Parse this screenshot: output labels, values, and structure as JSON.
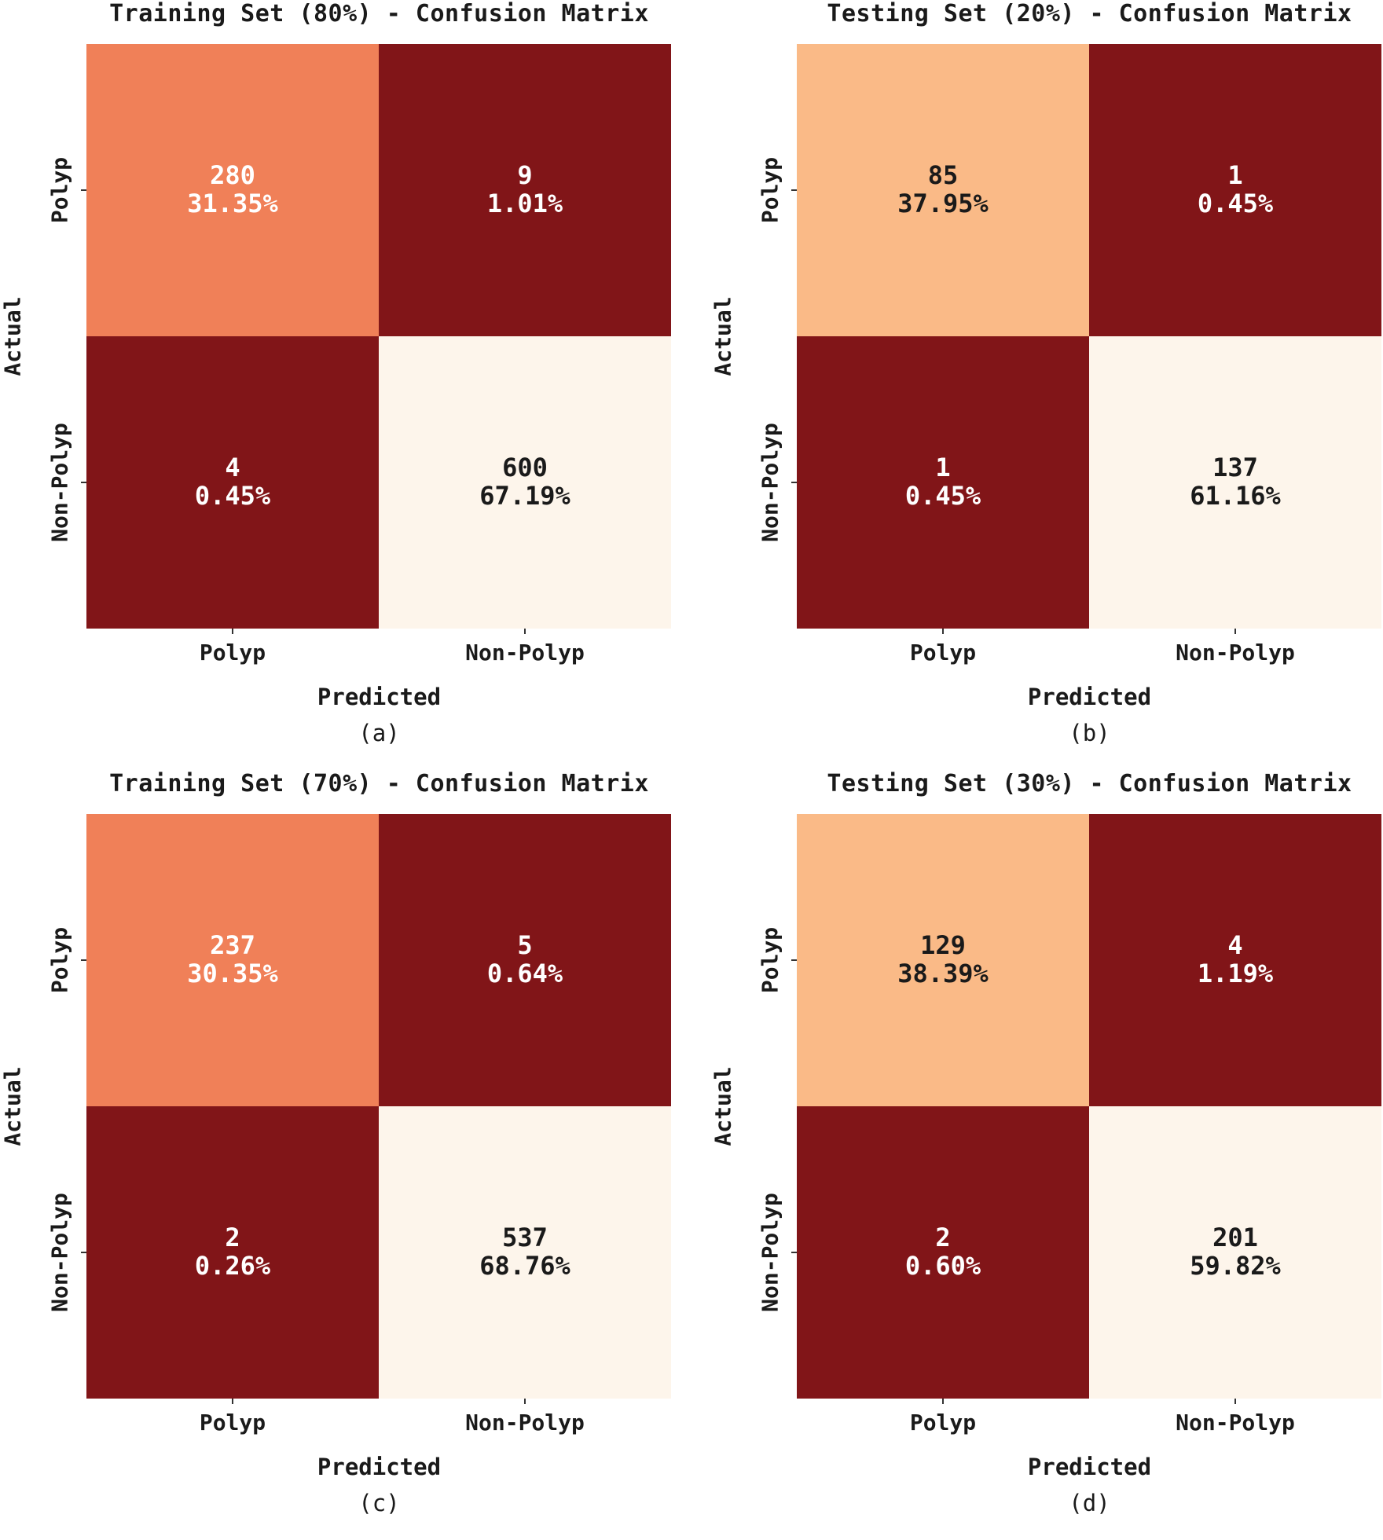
{
  "chart_data": [
    {
      "type": "heatmap",
      "caption": "(a)",
      "title": "Training Set (80%) - Confusion Matrix",
      "xlabel": "Predicted",
      "ylabel": "Actual",
      "x_categories": [
        "Polyp",
        "Non-Polyp"
      ],
      "y_categories": [
        "Polyp",
        "Non-Polyp"
      ],
      "values": [
        [
          280,
          9
        ],
        [
          4,
          600
        ]
      ],
      "percentages": [
        [
          "31.35%",
          "1.01%"
        ],
        [
          "0.45%",
          "67.19%"
        ]
      ],
      "cell_colors": [
        [
          "#F08058",
          "#811518"
        ],
        [
          "#811518",
          "#FDF5EB"
        ]
      ],
      "text_colors": [
        [
          "#ffffff",
          "#ffffff"
        ],
        [
          "#ffffff",
          "#1a1a1a"
        ]
      ]
    },
    {
      "type": "heatmap",
      "caption": "(b)",
      "title": "Testing Set (20%) - Confusion Matrix",
      "xlabel": "Predicted",
      "ylabel": "Actual",
      "x_categories": [
        "Polyp",
        "Non-Polyp"
      ],
      "y_categories": [
        "Polyp",
        "Non-Polyp"
      ],
      "values": [
        [
          85,
          1
        ],
        [
          1,
          137
        ]
      ],
      "percentages": [
        [
          "37.95%",
          "0.45%"
        ],
        [
          "0.45%",
          "61.16%"
        ]
      ],
      "cell_colors": [
        [
          "#FABA87",
          "#811518"
        ],
        [
          "#811518",
          "#FDF5EB"
        ]
      ],
      "text_colors": [
        [
          "#1a1a1a",
          "#ffffff"
        ],
        [
          "#ffffff",
          "#1a1a1a"
        ]
      ]
    },
    {
      "type": "heatmap",
      "caption": "(c)",
      "title": "Training Set (70%) - Confusion Matrix",
      "xlabel": "Predicted",
      "ylabel": "Actual",
      "x_categories": [
        "Polyp",
        "Non-Polyp"
      ],
      "y_categories": [
        "Polyp",
        "Non-Polyp"
      ],
      "values": [
        [
          237,
          5
        ],
        [
          2,
          537
        ]
      ],
      "percentages": [
        [
          "30.35%",
          "0.64%"
        ],
        [
          "0.26%",
          "68.76%"
        ]
      ],
      "cell_colors": [
        [
          "#F08058",
          "#811518"
        ],
        [
          "#811518",
          "#FDF5EB"
        ]
      ],
      "text_colors": [
        [
          "#ffffff",
          "#ffffff"
        ],
        [
          "#ffffff",
          "#1a1a1a"
        ]
      ]
    },
    {
      "type": "heatmap",
      "caption": "(d)",
      "title": "Testing Set (30%) - Confusion Matrix",
      "xlabel": "Predicted",
      "ylabel": "Actual",
      "x_categories": [
        "Polyp",
        "Non-Polyp"
      ],
      "y_categories": [
        "Polyp",
        "Non-Polyp"
      ],
      "values": [
        [
          129,
          4
        ],
        [
          2,
          201
        ]
      ],
      "percentages": [
        [
          "38.39%",
          "1.19%"
        ],
        [
          "0.60%",
          "59.82%"
        ]
      ],
      "cell_colors": [
        [
          "#FABA87",
          "#811518"
        ],
        [
          "#811518",
          "#FDF5EB"
        ]
      ],
      "text_colors": [
        [
          "#1a1a1a",
          "#ffffff"
        ],
        [
          "#ffffff",
          "#1a1a1a"
        ]
      ]
    }
  ]
}
